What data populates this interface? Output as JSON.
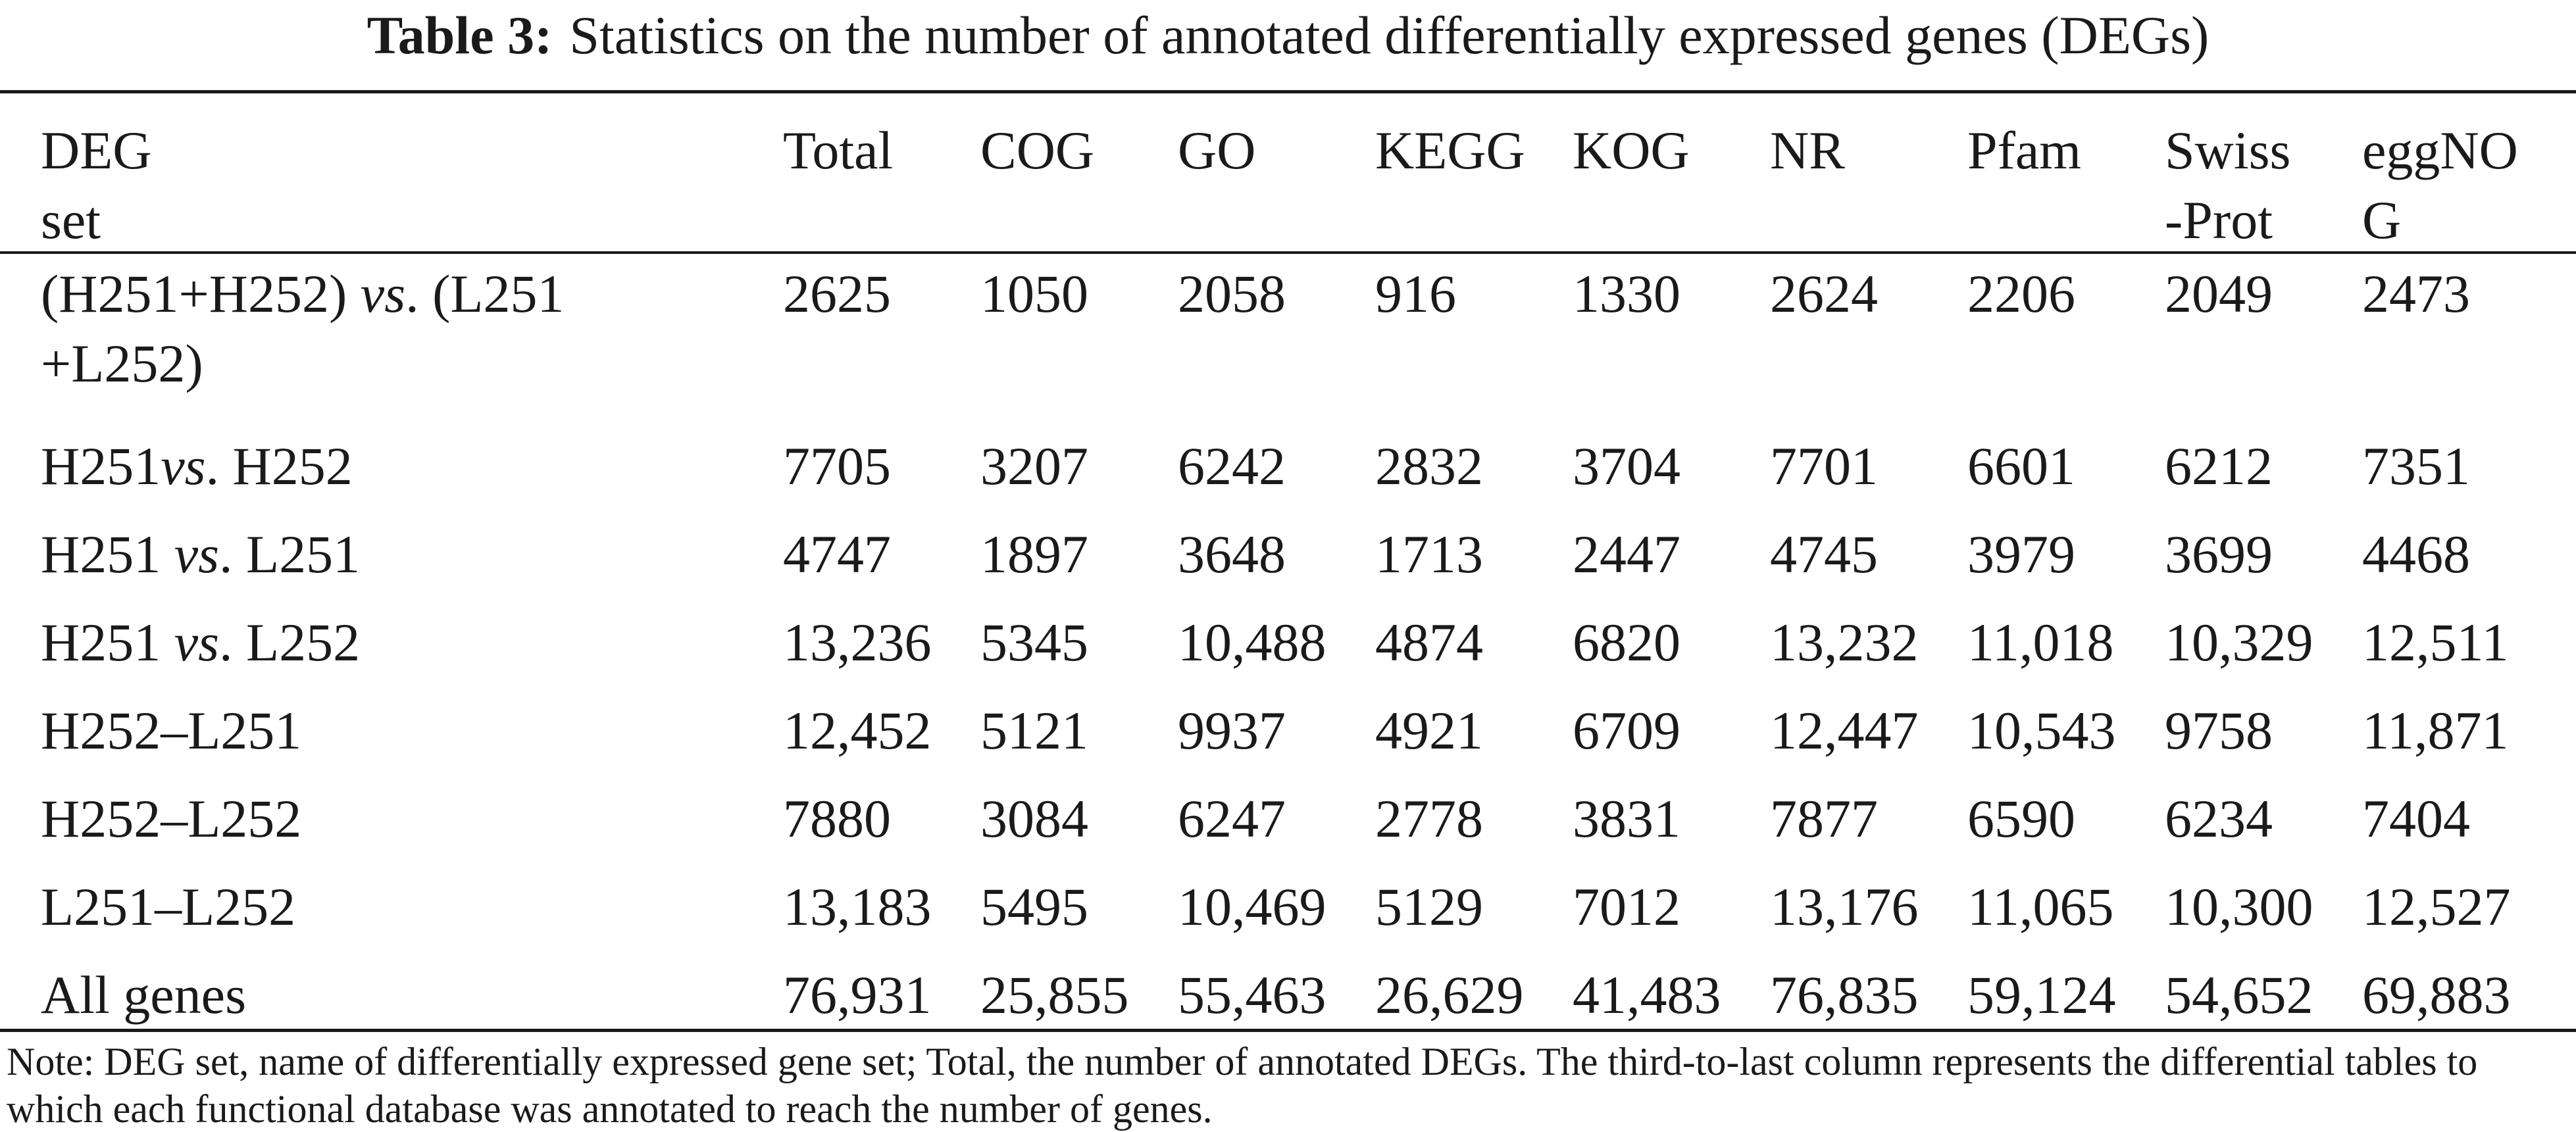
{
  "caption": {
    "label": "Table 3:",
    "text": "Statistics on the number of annotated differentially expressed genes (DEGs)"
  },
  "table": {
    "headers": [
      [
        "DEG",
        "set"
      ],
      [
        "Total"
      ],
      [
        "COG"
      ],
      [
        "GO"
      ],
      [
        "KEGG"
      ],
      [
        "KOG"
      ],
      [
        "NR"
      ],
      [
        "Pfam"
      ],
      [
        "Swiss",
        "-Prot"
      ],
      [
        "eggNO",
        "G"
      ]
    ],
    "rows": [
      {
        "set_parts": [
          {
            "t": "(H251+H252) ",
            "i": false
          },
          {
            "t": "vs",
            "i": true
          },
          {
            "t": ". (L251",
            "i": false
          },
          {
            "t": "\n+L252)",
            "i": false
          }
        ],
        "values": [
          "2625",
          "1050",
          "2058",
          "916",
          "1330",
          "2624",
          "2206",
          "2049",
          "2473"
        ]
      },
      {
        "set_parts": [
          {
            "t": "H251",
            "i": false
          },
          {
            "t": "vs",
            "i": true
          },
          {
            "t": ". H252",
            "i": false
          }
        ],
        "values": [
          "7705",
          "3207",
          "6242",
          "2832",
          "3704",
          "7701",
          "6601",
          "6212",
          "7351"
        ]
      },
      {
        "set_parts": [
          {
            "t": "H251 ",
            "i": false
          },
          {
            "t": "vs",
            "i": true
          },
          {
            "t": ". L251",
            "i": false
          }
        ],
        "values": [
          "4747",
          "1897",
          "3648",
          "1713",
          "2447",
          "4745",
          "3979",
          "3699",
          "4468"
        ]
      },
      {
        "set_parts": [
          {
            "t": "H251 ",
            "i": false
          },
          {
            "t": "vs",
            "i": true
          },
          {
            "t": ". L252",
            "i": false
          }
        ],
        "values": [
          "13,236",
          "5345",
          "10,488",
          "4874",
          "6820",
          "13,232",
          "11,018",
          "10,329",
          "12,511"
        ]
      },
      {
        "set_parts": [
          {
            "t": "H252–L251",
            "i": false
          }
        ],
        "values": [
          "12,452",
          "5121",
          "9937",
          "4921",
          "6709",
          "12,447",
          "10,543",
          "9758",
          "11,871"
        ]
      },
      {
        "set_parts": [
          {
            "t": "H252–L252",
            "i": false
          }
        ],
        "values": [
          "7880",
          "3084",
          "6247",
          "2778",
          "3831",
          "7877",
          "6590",
          "6234",
          "7404"
        ]
      },
      {
        "set_parts": [
          {
            "t": "L251–L252",
            "i": false
          }
        ],
        "values": [
          "13,183",
          "5495",
          "10,469",
          "5129",
          "7012",
          "13,176",
          "11,065",
          "10,300",
          "12,527"
        ]
      },
      {
        "set_parts": [
          {
            "t": "All genes",
            "i": false
          }
        ],
        "values": [
          "76,931",
          "25,855",
          "55,463",
          "26,629",
          "41,483",
          "76,835",
          "59,124",
          "54,652",
          "69,883"
        ]
      }
    ]
  },
  "note": "Note: DEG set, name of differentially expressed gene set; Total, the number of annotated DEGs. The third-to-last column represents the differential tables to which each functional database was annotated to reach the number of genes."
}
